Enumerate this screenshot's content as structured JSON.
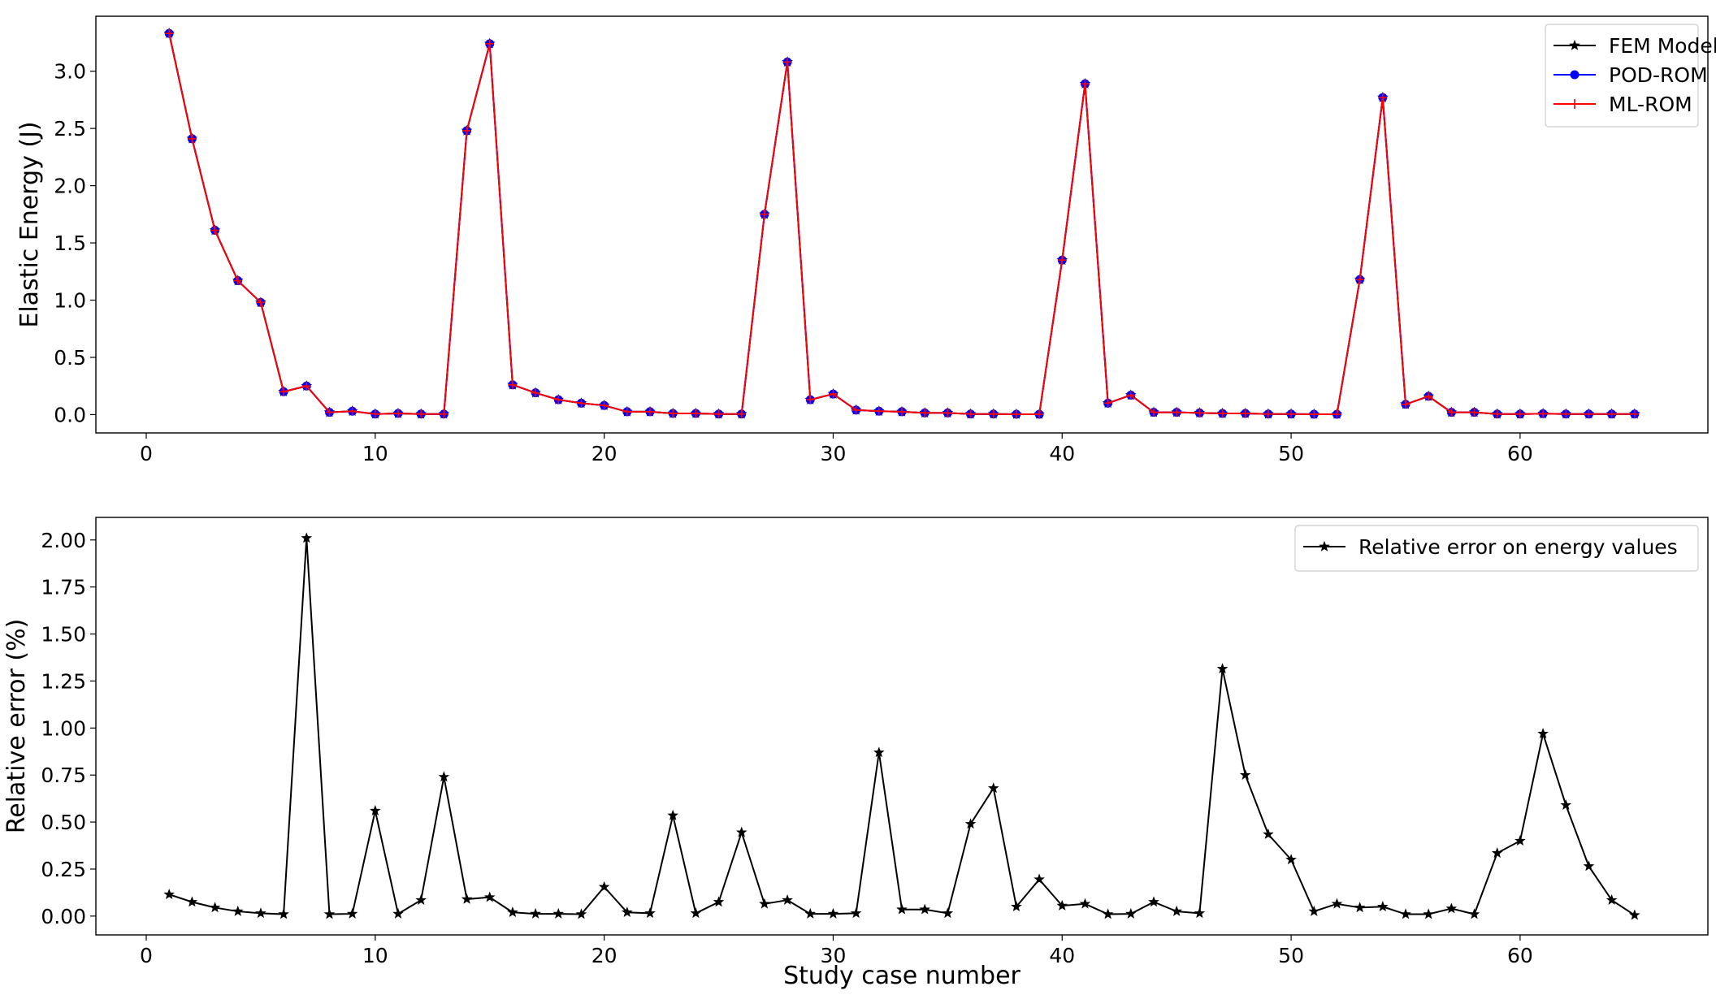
{
  "chart_data": [
    {
      "type": "line",
      "title": "",
      "xlabel": "",
      "ylabel": "Elastic Energy (J)",
      "xlim": [
        -2.2,
        68.2
      ],
      "ylim": [
        -0.16,
        3.48
      ],
      "xticks": [
        0,
        10,
        20,
        30,
        40,
        50,
        60
      ],
      "yticks": [
        0.0,
        0.5,
        1.0,
        1.5,
        2.0,
        2.5,
        3.0
      ],
      "ytick_labels": [
        "0.0",
        "0.5",
        "1.0",
        "1.5",
        "2.0",
        "2.5",
        "3.0"
      ],
      "grid": false,
      "legend_position": "top-right",
      "x": [
        1,
        2,
        3,
        4,
        5,
        6,
        7,
        8,
        9,
        10,
        11,
        12,
        13,
        14,
        15,
        16,
        17,
        18,
        19,
        20,
        21,
        22,
        23,
        24,
        25,
        26,
        27,
        28,
        29,
        30,
        31,
        32,
        33,
        34,
        35,
        36,
        37,
        38,
        39,
        40,
        41,
        42,
        43,
        44,
        45,
        46,
        47,
        48,
        49,
        50,
        51,
        52,
        53,
        54,
        55,
        56,
        57,
        58,
        59,
        60,
        61,
        62,
        63,
        64,
        65
      ],
      "series": [
        {
          "name": "FEM Model",
          "color": "#000000",
          "marker": "star",
          "values": [
            3.33,
            2.41,
            1.61,
            1.17,
            0.98,
            0.2,
            0.25,
            0.02,
            0.03,
            0.005,
            0.01,
            0.005,
            0.005,
            2.48,
            3.24,
            0.26,
            0.19,
            0.13,
            0.1,
            0.08,
            0.025,
            0.025,
            0.01,
            0.01,
            0.005,
            0.005,
            1.75,
            3.08,
            0.13,
            0.18,
            0.04,
            0.03,
            0.025,
            0.015,
            0.015,
            0.005,
            0.005,
            0.003,
            0.003,
            1.35,
            2.89,
            0.1,
            0.17,
            0.02,
            0.02,
            0.015,
            0.01,
            0.01,
            0.005,
            0.005,
            0.003,
            0.003,
            1.18,
            2.77,
            0.09,
            0.16,
            0.02,
            0.02,
            0.005,
            0.005,
            0.008,
            0.005,
            0.005,
            0.005,
            0.005
          ]
        },
        {
          "name": "POD-ROM",
          "color": "#0000ff",
          "marker": "circle",
          "values": [
            3.33,
            2.41,
            1.61,
            1.17,
            0.98,
            0.2,
            0.25,
            0.02,
            0.03,
            0.005,
            0.01,
            0.005,
            0.005,
            2.48,
            3.24,
            0.26,
            0.19,
            0.13,
            0.1,
            0.08,
            0.025,
            0.025,
            0.01,
            0.01,
            0.005,
            0.005,
            1.75,
            3.08,
            0.13,
            0.18,
            0.04,
            0.03,
            0.025,
            0.015,
            0.015,
            0.005,
            0.005,
            0.003,
            0.003,
            1.35,
            2.89,
            0.1,
            0.17,
            0.02,
            0.02,
            0.015,
            0.01,
            0.01,
            0.005,
            0.005,
            0.003,
            0.003,
            1.18,
            2.77,
            0.09,
            0.16,
            0.02,
            0.02,
            0.005,
            0.005,
            0.008,
            0.005,
            0.005,
            0.005,
            0.005
          ]
        },
        {
          "name": "ML-ROM",
          "color": "#ff0000",
          "marker": "plus",
          "values": [
            3.33,
            2.41,
            1.61,
            1.17,
            0.98,
            0.2,
            0.25,
            0.02,
            0.03,
            0.005,
            0.01,
            0.005,
            0.005,
            2.48,
            3.24,
            0.26,
            0.19,
            0.13,
            0.1,
            0.08,
            0.025,
            0.025,
            0.01,
            0.01,
            0.005,
            0.005,
            1.75,
            3.08,
            0.13,
            0.18,
            0.04,
            0.03,
            0.025,
            0.015,
            0.015,
            0.005,
            0.005,
            0.003,
            0.003,
            1.35,
            2.89,
            0.1,
            0.17,
            0.02,
            0.02,
            0.015,
            0.01,
            0.01,
            0.005,
            0.005,
            0.003,
            0.003,
            1.18,
            2.77,
            0.09,
            0.16,
            0.02,
            0.02,
            0.005,
            0.005,
            0.008,
            0.005,
            0.005,
            0.005,
            0.005
          ]
        }
      ]
    },
    {
      "type": "line",
      "title": "",
      "xlabel": "Study case number",
      "ylabel": "Relative error (%)",
      "xlim": [
        -2.2,
        68.2
      ],
      "ylim": [
        -0.1,
        2.12
      ],
      "xticks": [
        0,
        10,
        20,
        30,
        40,
        50,
        60
      ],
      "yticks": [
        0.0,
        0.25,
        0.5,
        0.75,
        1.0,
        1.25,
        1.5,
        1.75,
        2.0
      ],
      "ytick_labels": [
        "0.00",
        "0.25",
        "0.50",
        "0.75",
        "1.00",
        "1.25",
        "1.50",
        "1.75",
        "2.00"
      ],
      "grid": false,
      "legend_position": "top-right",
      "x": [
        1,
        2,
        3,
        4,
        5,
        6,
        7,
        8,
        9,
        10,
        11,
        12,
        13,
        14,
        15,
        16,
        17,
        18,
        19,
        20,
        21,
        22,
        23,
        24,
        25,
        26,
        27,
        28,
        29,
        30,
        31,
        32,
        33,
        34,
        35,
        36,
        37,
        38,
        39,
        40,
        41,
        42,
        43,
        44,
        45,
        46,
        47,
        48,
        49,
        50,
        51,
        52,
        53,
        54,
        55,
        56,
        57,
        58,
        59,
        60,
        61,
        62,
        63,
        64,
        65
      ],
      "series": [
        {
          "name": "Relative error on energy values",
          "color": "#000000",
          "marker": "star",
          "values": [
            0.115,
            0.075,
            0.045,
            0.025,
            0.015,
            0.01,
            2.01,
            0.01,
            0.012,
            0.56,
            0.012,
            0.085,
            0.74,
            0.09,
            0.1,
            0.02,
            0.012,
            0.012,
            0.01,
            0.155,
            0.02,
            0.015,
            0.535,
            0.015,
            0.075,
            0.445,
            0.065,
            0.085,
            0.012,
            0.012,
            0.015,
            0.87,
            0.035,
            0.035,
            0.015,
            0.49,
            0.68,
            0.05,
            0.195,
            0.055,
            0.065,
            0.01,
            0.012,
            0.075,
            0.025,
            0.015,
            1.315,
            0.75,
            0.435,
            0.3,
            0.025,
            0.065,
            0.045,
            0.05,
            0.01,
            0.01,
            0.04,
            0.01,
            0.335,
            0.4,
            0.97,
            0.59,
            0.265,
            0.085,
            0.005
          ]
        }
      ]
    }
  ]
}
